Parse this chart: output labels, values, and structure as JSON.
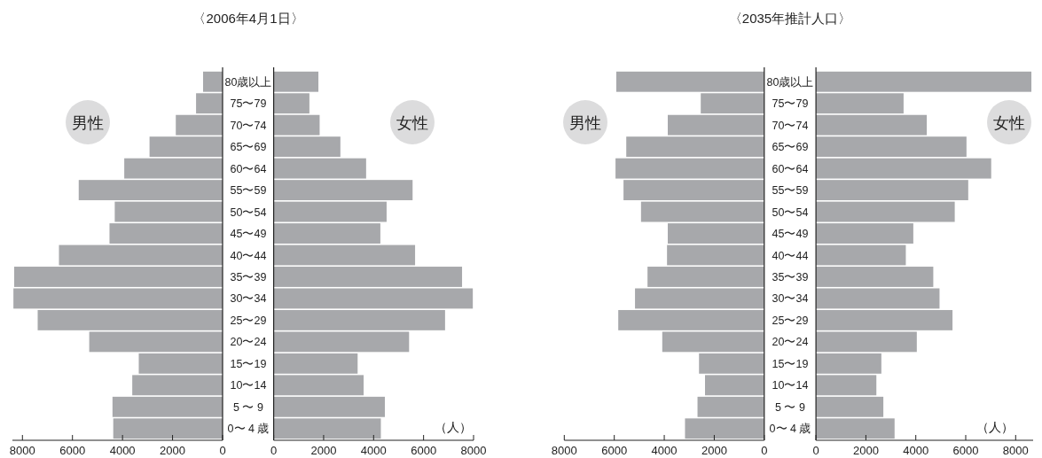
{
  "chart_data": [
    {
      "type": "bar",
      "orientation": "horizontal",
      "title": "〈2006年4月1日〉",
      "categories": [
        null,
        null,
        null,
        null,
        null,
        null,
        null,
        null,
        null,
        null,
        null,
        null,
        null,
        null,
        null,
        null,
        null
      ],
      "values": [
        780,
        1060,
        1870,
        2920,
        3930,
        5750,
        4310,
        4520,
        6540,
        8330,
        8360,
        7390,
        5330,
        3350,
        3610,
        4400,
        4370
      ],
      "color": "#a7a8ab",
      "xlim": [
        8400,
        0
      ],
      "xticks": [
        8000,
        6000,
        4000,
        2000,
        0
      ],
      "tick_labels": "x",
      "annotations": [
        "男性"
      ]
    },
    {
      "type": "bar",
      "orientation": "horizontal",
      "categories": [
        "80歳以上",
        "75〜79",
        "70〜74",
        "65〜69",
        "60〜64",
        "55〜59",
        "50〜54",
        "45〜49",
        "40〜44",
        "35〜39",
        "30〜34",
        "25〜29",
        "20〜24",
        "15〜19",
        "10〜14",
        "5 〜 9",
        "0〜 4 歳"
      ],
      "values": [
        1790,
        1430,
        1840,
        2670,
        3700,
        5560,
        4520,
        4270,
        5660,
        7540,
        7970,
        6860,
        5420,
        3360,
        3600,
        4450,
        4290
      ],
      "color": "#a7a8ab",
      "xlim": [
        0,
        8000
      ],
      "xticks": [
        0,
        2000,
        4000,
        6000,
        8000
      ],
      "annotations": [
        "女性",
        "（人）"
      ]
    },
    {
      "type": "bar",
      "orientation": "horizontal",
      "title": "〈2035年推計人口〉",
      "categories": [
        null,
        null,
        null,
        null,
        null,
        null,
        null,
        null,
        null,
        null,
        null,
        null,
        null,
        null,
        null,
        null,
        null
      ],
      "values": [
        5920,
        2540,
        3860,
        5520,
        5950,
        5630,
        4930,
        3860,
        3890,
        4670,
        5170,
        5840,
        4080,
        2610,
        2370,
        2670,
        3170
      ],
      "color": "#a7a8ab",
      "xlim": [
        8000,
        0
      ],
      "xticks": [
        8000,
        6000,
        4000,
        2000,
        0
      ],
      "tick_labels": "x",
      "annotations": [
        "男性"
      ]
    },
    {
      "type": "bar",
      "orientation": "horizontal",
      "categories": [
        "80歳以上",
        "75〜79",
        "70〜74",
        "65〜69",
        "60〜64",
        "55〜59",
        "50〜54",
        "45〜49",
        "40〜44",
        "35〜39",
        "30〜34",
        "25〜29",
        "20〜24",
        "15〜19",
        "10〜14",
        "5 〜 9",
        "0〜 4 歳"
      ],
      "values": [
        8630,
        3510,
        4440,
        6030,
        7020,
        6100,
        5560,
        3900,
        3600,
        4700,
        4950,
        5470,
        4040,
        2620,
        2420,
        2700,
        3150
      ],
      "color": "#a7a8ab",
      "xlim": [
        0,
        8700
      ],
      "xticks": [
        0,
        2000,
        4000,
        6000,
        8000
      ],
      "annotations": [
        "女性",
        "（人）"
      ]
    }
  ]
}
